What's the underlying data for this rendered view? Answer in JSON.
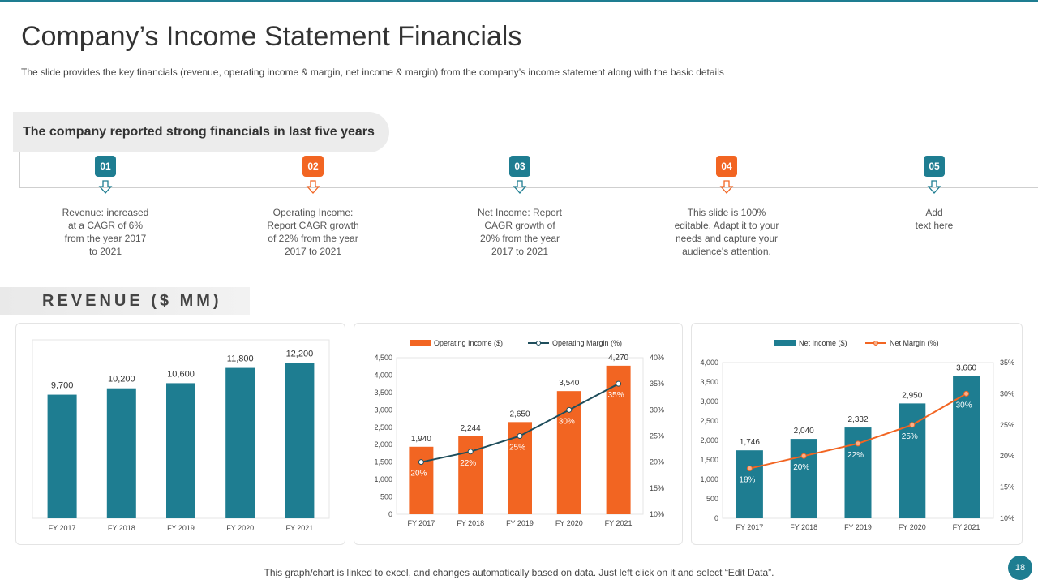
{
  "header": {
    "title": "Company’s Income Statement Financials",
    "subtitle": "The slide provides  the key financials (revenue,  operating income & margin, net income & margin) from the company’s income statement along with the basic details"
  },
  "callout": {
    "text": "The company reported strong financials in last five years"
  },
  "steps": [
    {
      "num": "01",
      "color": "#1e7d91",
      "lines": [
        "Revenue:  increased",
        "at a CAGR of 6%",
        "from the year 2017",
        "to 2021"
      ]
    },
    {
      "num": "02",
      "color": "#f26522",
      "lines": [
        "Operating Income:",
        "Report CAGR growth",
        "of 22% from the year",
        "2017 to 2021"
      ]
    },
    {
      "num": "03",
      "color": "#1e7d91",
      "lines": [
        "Net Income: Report",
        "CAGR growth  of",
        "20% from the year",
        "2017 to 2021"
      ]
    },
    {
      "num": "04",
      "color": "#f26522",
      "lines": [
        "This slide is 100%",
        "editable. Adapt it to your",
        "needs and capture your",
        "audience's attention."
      ]
    },
    {
      "num": "05",
      "color": "#1e7d91",
      "lines": [
        "Add",
        "text here"
      ]
    }
  ],
  "section": {
    "revenue_label": "REVENUE ($ MM)"
  },
  "colors": {
    "teal": "#1e7d91",
    "orange": "#f26522",
    "line_dark": "#1f4e5c"
  },
  "chart_data": [
    {
      "type": "bar",
      "categories": [
        "FY 2017",
        "FY 2018",
        "FY 2019",
        "FY 2020",
        "FY 2021"
      ],
      "values": [
        9700,
        10200,
        10600,
        11800,
        12200
      ],
      "value_labels": [
        "9,700",
        "10,200",
        "10,600",
        "11,800",
        "12,200"
      ],
      "ylim": [
        0,
        14000
      ]
    },
    {
      "type": "bar",
      "categories": [
        "FY 2017",
        "FY 2018",
        "FY 2019",
        "FY 2020",
        "FY 2021"
      ],
      "legend": [
        "Operating Income ($)",
        "Operating Margin (%)"
      ],
      "series": [
        {
          "name": "Operating Income ($)",
          "values": [
            1940,
            2244,
            2650,
            3540,
            4270
          ],
          "labels": [
            "1,940",
            "2,244",
            "2,650",
            "3,540",
            "4,270"
          ]
        },
        {
          "name": "Operating Margin (%)",
          "values": [
            20,
            22,
            25,
            30,
            35
          ],
          "labels": [
            "20%",
            "22%",
            "25%",
            "30%",
            "35%"
          ]
        }
      ],
      "ylim": [
        0,
        4500
      ],
      "y2lim": [
        10,
        40
      ],
      "yticks": [
        "0",
        "500",
        "1,000",
        "1,500",
        "2,000",
        "2,500",
        "3,000",
        "3,500",
        "4,000",
        "4,500"
      ],
      "y2ticks": [
        "10%",
        "15%",
        "20%",
        "25%",
        "30%",
        "35%",
        "40%"
      ]
    },
    {
      "type": "bar",
      "categories": [
        "FY 2017",
        "FY 2018",
        "FY 2019",
        "FY 2020",
        "FY 2021"
      ],
      "legend": [
        "Net Income ($)",
        "Net Margin (%)"
      ],
      "series": [
        {
          "name": "Net Income ($)",
          "values": [
            1746,
            2040,
            2332,
            2950,
            3660
          ],
          "labels": [
            "1,746",
            "2,040",
            "2,332",
            "2,950",
            "3,660"
          ]
        },
        {
          "name": "Net Margin (%)",
          "values": [
            18,
            20,
            22,
            25,
            30
          ],
          "labels": [
            "18%",
            "20%",
            "22%",
            "25%",
            "30%"
          ]
        }
      ],
      "ylim": [
        0,
        4000
      ],
      "y2lim": [
        10,
        35
      ],
      "yticks": [
        "0",
        "500",
        "1,000",
        "1,500",
        "2,000",
        "2,500",
        "3,000",
        "3,500",
        "4,000"
      ],
      "y2ticks": [
        "10%",
        "15%",
        "20%",
        "25%",
        "30%",
        "35%"
      ]
    }
  ],
  "footer": {
    "note": "This graph/chart is linked to excel, and changes automatically based on data. Just left click on it and select “Edit Data”.",
    "page": "18"
  }
}
